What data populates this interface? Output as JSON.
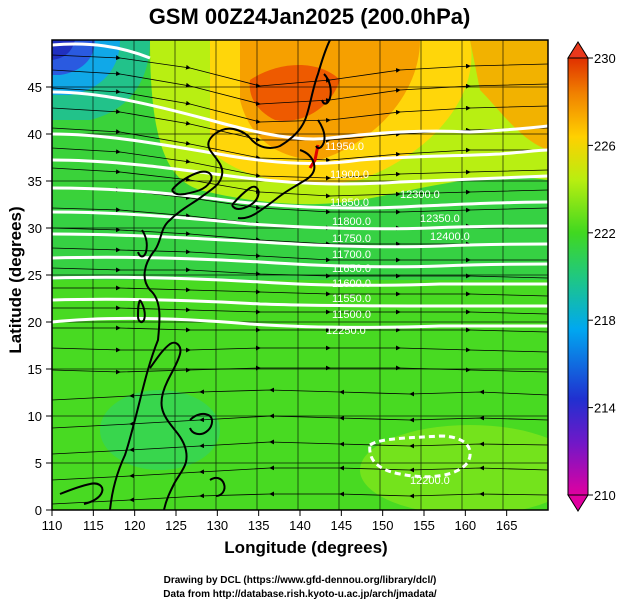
{
  "title": "GSM 00Z24Jan2025 (200.0hPa)",
  "xaxis": {
    "label": "Longitude (degrees)",
    "range": [
      110,
      170
    ],
    "ticks": [
      110,
      115,
      120,
      125,
      130,
      135,
      140,
      145,
      150,
      155,
      160,
      165
    ]
  },
  "yaxis": {
    "label": "Latitude  (degrees)",
    "range": [
      0,
      50
    ],
    "ticks": [
      0,
      5,
      10,
      15,
      20,
      25,
      30,
      35,
      40,
      45
    ]
  },
  "colorbar": {
    "min": 210,
    "max": 230,
    "labels": [
      210,
      214,
      218,
      222,
      226,
      230
    ],
    "colors": [
      "#e000a0",
      "#3030d0",
      "#00b0f0",
      "#20c060",
      "#40e000",
      "#c0f000",
      "#ffd000",
      "#f08000",
      "#e03000"
    ]
  },
  "contours": {
    "line_color": "#ffffff",
    "labels": [
      "11950.0",
      "11900.0",
      "11850.0",
      "11800.0",
      "11750.0",
      "11700.0",
      "11650.0",
      "11600.0",
      "11550.0",
      "11500.0",
      "12300.0",
      "12350.0",
      "12400.0",
      "12250.0",
      "12200.0"
    ]
  },
  "credits": [
    "Drawing by DCL (https://www.gfd-dennou.org/library/dcl/)",
    "Data from http://database.rish.kyoto-u.ac.jp/arch/jmadata/"
  ]
}
